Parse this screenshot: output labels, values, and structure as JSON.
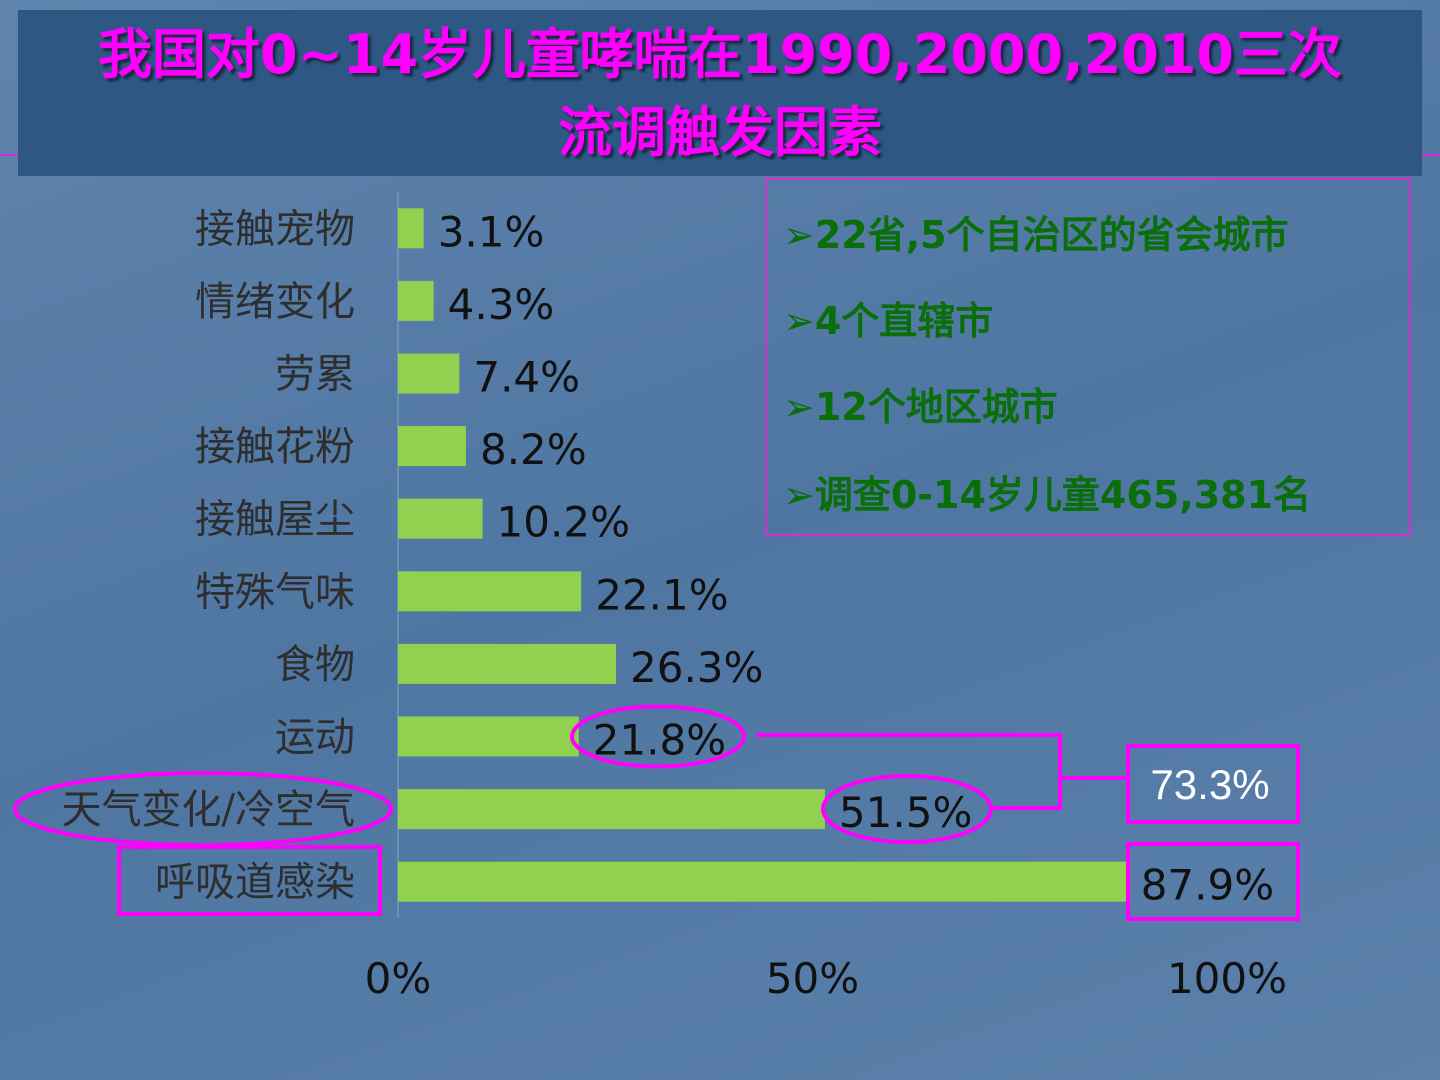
{
  "title": {
    "line1": "我国对0~14岁儿童哮喘在1990,2000,2010三次",
    "line2": "流调触发因素"
  },
  "info_box": {
    "bullet": "➢",
    "items": [
      "22省,5个自治区的省会城市",
      "4个直辖市",
      "12个地区城市",
      "调查0-14岁儿童465,381名"
    ]
  },
  "colors": {
    "bar": "#92d050",
    "highlight": "#ff00ff",
    "info_text": "#0a6e0a",
    "title_bg": "#2e5784"
  },
  "chart_data": {
    "type": "bar",
    "orientation": "horizontal",
    "categories": [
      "接触宠物",
      "情绪变化",
      "劳累",
      "接触花粉",
      "接触屋尘",
      "特殊气味",
      "食物",
      "运动",
      "天气变化/冷空气",
      "呼吸道感染"
    ],
    "values": [
      3.1,
      4.3,
      7.4,
      8.2,
      10.2,
      22.1,
      26.3,
      21.8,
      51.5,
      87.9
    ],
    "data_labels": [
      "3.1%",
      "4.3%",
      "7.4%",
      "8.2%",
      "10.2%",
      "22.1%",
      "26.3%",
      "21.8%",
      "51.5%",
      "87.9%"
    ],
    "xlim": [
      0,
      100
    ],
    "x_ticks": [
      "0%",
      "50%",
      "100%"
    ],
    "grid": false,
    "annotations": {
      "combined_label": "73.3%",
      "combined_of": [
        "运动",
        "天气变化/冷空气"
      ],
      "highlighted_category": "呼吸道感染"
    }
  }
}
